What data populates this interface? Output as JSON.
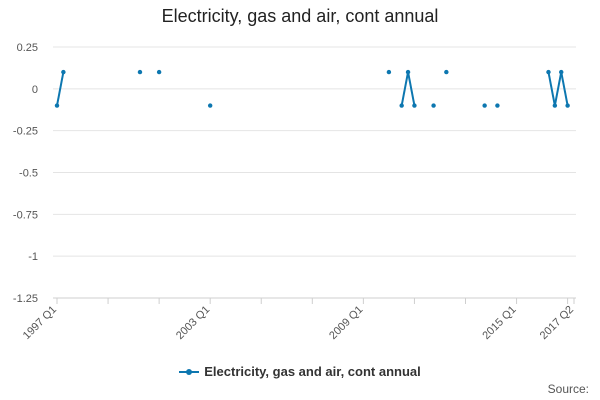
{
  "chart_data": {
    "type": "line",
    "title": "Electricity, gas and air, cont annual",
    "xlabel": "",
    "ylabel": "",
    "x_start": "1997 Q1",
    "x_end": "2017 Q2",
    "x_ticks": [
      "1997 Q1",
      "2003 Q1",
      "2009 Q1",
      "2015 Q1",
      "2017 Q2"
    ],
    "ylim": [
      -1.25,
      0.25
    ],
    "y_ticks": [
      0.25,
      0,
      -0.25,
      -0.5,
      -0.75,
      -1,
      -1.25
    ],
    "grid": true,
    "legend_position": "bottom",
    "series": [
      {
        "name": "Electricity, gas and air, cont annual",
        "color": "#0d77b0",
        "points": [
          [
            "1997 Q1",
            -0.1
          ],
          [
            "1997 Q2",
            0.1
          ],
          [
            "2000 Q2",
            0.1
          ],
          [
            "2001 Q1",
            0.1
          ],
          [
            "2003 Q1",
            -0.1
          ],
          [
            "2010 Q1",
            0.1
          ],
          [
            "2010 Q3",
            -0.1
          ],
          [
            "2010 Q4",
            0.1
          ],
          [
            "2011 Q1",
            -0.1
          ],
          [
            "2011 Q4",
            -0.1
          ],
          [
            "2012 Q2",
            0.1
          ],
          [
            "2013 Q4",
            -0.1
          ],
          [
            "2014 Q2",
            -0.1
          ],
          [
            "2016 Q2",
            0.1
          ],
          [
            "2016 Q3",
            -0.1
          ],
          [
            "2016 Q4",
            0.1
          ],
          [
            "2017 Q1",
            -0.1
          ]
        ]
      }
    ]
  },
  "source_label": "Source:"
}
